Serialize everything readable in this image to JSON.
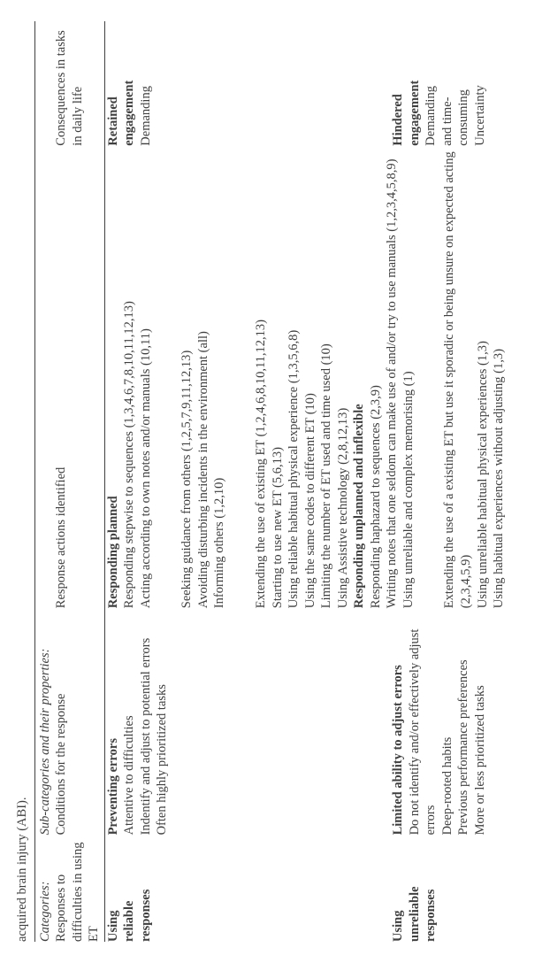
{
  "caption_tail": "acquired brain injury (ABI).",
  "header": {
    "categories_label_italic": "Categories:",
    "categories_label": "Responses to difficulties in using ET",
    "subprop_label_italic": "Sub-categories and their properties:",
    "conditions_label": "Conditions for the response",
    "actions_label": "Response actions identified",
    "consequences_label": "Consequences in tasks in daily life"
  },
  "row1": {
    "cat_line1": "Using",
    "cat_line2": "reliable",
    "cat_line3": "responses",
    "cond_title": "Preventing errors",
    "cond_items": [
      "Attentive to difficulties",
      "Indentify and adjust to potential errors",
      "Often highly prioritized tasks"
    ],
    "act_title": "Responding planned",
    "act_block1": [
      "Responding stepwise to sequences (1,3,4,6,7,8,10,11,12,13)",
      "Acting according to own notes and/or manuals (10,11)"
    ],
    "act_block2": [
      "Seeking guidance from others (1,2,5,7,9,11,12,13)",
      "Avoiding disturbing incidents in the environment (all)",
      "Informing others (1,2,10)"
    ],
    "act_block3": [
      "Extending the use of existing ET (1,2,4,6,8,10,11,12,13)",
      "Starting to use new ET (5,6,13)",
      "Using reliable habitual physical experience (1,3,5,6,8)",
      "Using the same codes to different ET (10)",
      "Limiting the number of ET used and time used (10)",
      "Using Assistive technology (2,8,12,13)"
    ],
    "cons_line1": "Retained",
    "cons_line2": "engagement",
    "cons_line3": "Demanding"
  },
  "row2": {
    "cat_line1": "Using",
    "cat_line2": "unreliable",
    "cat_line3": "responses",
    "cond_title": "Limited ability to adjust errors",
    "cond_items": [
      "Do not identify and/or effectively adjust errors",
      "Deep-rooted habits",
      "Previous performance preferences",
      "More or less prioritized tasks"
    ],
    "act_title": "Responding unplanned and inflexible",
    "act_block1": [
      "Responding haphazard to sequences (2,3,9)",
      "Writing notes that one seldom can make use of and/or try to  use manuals (1,2,3,4,5,8,9)",
      "Using unreliable and complex memorising (1)"
    ],
    "act_block2": [
      "Extending the use of a existing ET but use it sporadic or being unsure on expected acting (2,3,4,5,9)",
      "Using unreliable habitual physical experiences (1,3)",
      "Using habitual experiences without adjusting (1,3)"
    ],
    "cons_line1": "Hindered",
    "cons_line2": "engagement",
    "cons_line3": "Demanding",
    "cons_line4": "and time-",
    "cons_line5": "consuming",
    "cons_line6": "Uncertainty"
  }
}
